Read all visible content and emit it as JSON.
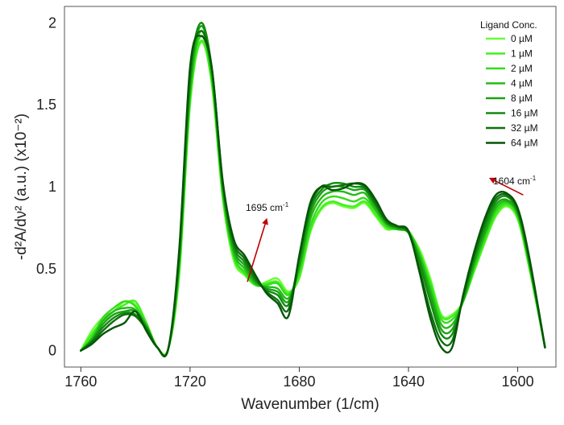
{
  "chart_data": {
    "type": "line",
    "xlabel": "Wavenumber (1/cm)",
    "ylabel": "-d²A/dν² (a.u.) (x10⁻²)",
    "xlim": [
      1766,
      1586
    ],
    "ylim": [
      -0.1,
      2.1
    ],
    "x_reversed": true,
    "x_ticks": [
      {
        "value": 1760,
        "label": "1760"
      },
      {
        "value": 1720,
        "label": "1720"
      },
      {
        "value": 1680,
        "label": "1680"
      },
      {
        "value": 1640,
        "label": "1640"
      },
      {
        "value": 1600,
        "label": "1600"
      }
    ],
    "y_ticks": [
      {
        "value": 0,
        "label": "0"
      },
      {
        "value": 0.5,
        "label": "0.5"
      },
      {
        "value": 1,
        "label": "1"
      },
      {
        "value": 1.5,
        "label": "1.5"
      },
      {
        "value": 2,
        "label": "2"
      }
    ],
    "grid": false,
    "legend": {
      "title": "Ligand Conc.",
      "position": "top-right"
    },
    "x": [
      1760,
      1756,
      1752,
      1748,
      1744,
      1740,
      1736,
      1732,
      1728,
      1724,
      1720,
      1716,
      1712,
      1708,
      1704,
      1700,
      1696,
      1692,
      1688,
      1684,
      1680,
      1676,
      1672,
      1668,
      1664,
      1660,
      1656,
      1652,
      1648,
      1644,
      1640,
      1636,
      1632,
      1628,
      1624,
      1620,
      1616,
      1612,
      1608,
      1604,
      1600,
      1596,
      1590
    ],
    "series": [
      {
        "name": "0 µM",
        "color": "#66ff33",
        "values": [
          0.0,
          0.12,
          0.2,
          0.24,
          0.3,
          0.28,
          0.15,
          0.02,
          0.01,
          0.45,
          1.5,
          1.88,
          1.62,
          0.92,
          0.55,
          0.46,
          0.4,
          0.42,
          0.44,
          0.36,
          0.44,
          0.72,
          0.86,
          0.9,
          0.88,
          0.87,
          0.9,
          0.82,
          0.74,
          0.75,
          0.72,
          0.62,
          0.44,
          0.22,
          0.22,
          0.3,
          0.48,
          0.66,
          0.82,
          0.88,
          0.8,
          0.52,
          0.02
        ]
      },
      {
        "name": "1 µM",
        "color": "#44ee22",
        "values": [
          0.0,
          0.1,
          0.18,
          0.24,
          0.28,
          0.3,
          0.17,
          0.02,
          0.01,
          0.47,
          1.52,
          1.89,
          1.63,
          0.94,
          0.57,
          0.47,
          0.4,
          0.41,
          0.42,
          0.35,
          0.45,
          0.73,
          0.87,
          0.91,
          0.89,
          0.88,
          0.91,
          0.83,
          0.75,
          0.74,
          0.72,
          0.6,
          0.42,
          0.21,
          0.21,
          0.3,
          0.49,
          0.67,
          0.83,
          0.89,
          0.81,
          0.53,
          0.02
        ]
      },
      {
        "name": "2 µM",
        "color": "#33dd1a",
        "values": [
          0.0,
          0.08,
          0.2,
          0.26,
          0.3,
          0.27,
          0.16,
          0.02,
          0.01,
          0.5,
          1.55,
          1.92,
          1.65,
          0.95,
          0.58,
          0.48,
          0.4,
          0.4,
          0.41,
          0.34,
          0.48,
          0.76,
          0.9,
          0.94,
          0.93,
          0.91,
          0.93,
          0.85,
          0.76,
          0.74,
          0.73,
          0.6,
          0.4,
          0.19,
          0.19,
          0.3,
          0.5,
          0.69,
          0.85,
          0.9,
          0.82,
          0.54,
          0.02
        ]
      },
      {
        "name": "4 µM",
        "color": "#22bb18",
        "values": [
          0.0,
          0.07,
          0.18,
          0.24,
          0.26,
          0.25,
          0.15,
          0.02,
          0.01,
          0.52,
          1.58,
          1.95,
          1.67,
          0.97,
          0.6,
          0.5,
          0.41,
          0.39,
          0.38,
          0.32,
          0.5,
          0.8,
          0.93,
          0.97,
          0.97,
          0.95,
          0.96,
          0.86,
          0.77,
          0.74,
          0.72,
          0.58,
          0.37,
          0.16,
          0.16,
          0.3,
          0.52,
          0.71,
          0.87,
          0.91,
          0.83,
          0.55,
          0.02
        ]
      },
      {
        "name": "8 µM",
        "color": "#1aa314",
        "values": [
          0.0,
          0.06,
          0.16,
          0.22,
          0.24,
          0.24,
          0.15,
          0.02,
          0.01,
          0.55,
          1.62,
          1.98,
          1.7,
          0.99,
          0.62,
          0.52,
          0.42,
          0.38,
          0.36,
          0.3,
          0.52,
          0.83,
          0.96,
          1.0,
          1.0,
          0.98,
          0.98,
          0.88,
          0.78,
          0.75,
          0.72,
          0.56,
          0.34,
          0.13,
          0.13,
          0.31,
          0.54,
          0.73,
          0.89,
          0.92,
          0.84,
          0.56,
          0.02
        ]
      },
      {
        "name": "16 µM",
        "color": "#138a10",
        "values": [
          0.0,
          0.06,
          0.14,
          0.2,
          0.23,
          0.22,
          0.14,
          0.02,
          0.01,
          0.57,
          1.66,
          2.0,
          1.72,
          1.01,
          0.64,
          0.54,
          0.43,
          0.37,
          0.34,
          0.28,
          0.55,
          0.86,
          0.98,
          1.02,
          1.02,
          1.0,
          0.99,
          0.89,
          0.78,
          0.75,
          0.72,
          0.54,
          0.3,
          0.1,
          0.1,
          0.32,
          0.56,
          0.76,
          0.91,
          0.94,
          0.85,
          0.57,
          0.02
        ]
      },
      {
        "name": "32 µM",
        "color": "#0c700c",
        "values": [
          0.0,
          0.05,
          0.12,
          0.18,
          0.22,
          0.21,
          0.13,
          0.02,
          0.01,
          0.59,
          1.7,
          1.95,
          1.72,
          1.02,
          0.66,
          0.56,
          0.44,
          0.36,
          0.31,
          0.25,
          0.57,
          0.88,
          1.0,
          1.0,
          1.01,
          1.02,
          1.0,
          0.9,
          0.79,
          0.76,
          0.72,
          0.5,
          0.24,
          0.06,
          0.06,
          0.33,
          0.58,
          0.79,
          0.93,
          0.95,
          0.86,
          0.58,
          0.02
        ]
      },
      {
        "name": "64 µM",
        "color": "#055505",
        "values": [
          0.0,
          0.04,
          0.1,
          0.14,
          0.17,
          0.24,
          0.12,
          0.02,
          0.01,
          0.61,
          1.73,
          1.92,
          1.72,
          1.03,
          0.68,
          0.58,
          0.46,
          0.35,
          0.29,
          0.21,
          0.58,
          0.9,
          1.0,
          0.98,
          0.99,
          1.02,
          1.01,
          0.92,
          0.8,
          0.76,
          0.73,
          0.48,
          0.2,
          0.02,
          0.02,
          0.34,
          0.6,
          0.81,
          0.95,
          0.96,
          0.87,
          0.59,
          0.02
        ]
      }
    ],
    "annotations": [
      {
        "text": "1695 cm",
        "superscript": "-1",
        "arrow_from": [
          1699,
          0.42
        ],
        "arrow_to": [
          1692,
          0.8
        ],
        "color": "#c00000"
      },
      {
        "text": "1604 cm",
        "superscript": "-1",
        "arrow_from": [
          1598,
          0.95
        ],
        "arrow_to": [
          1610,
          1.05
        ],
        "color": "#c00000"
      }
    ]
  }
}
